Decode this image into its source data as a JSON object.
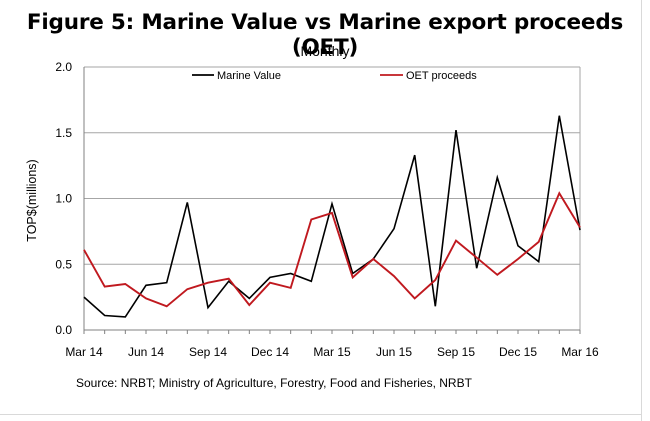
{
  "header": {
    "title": "Figure 5: Marine Value vs Marine export proceeds (OET)",
    "subtitle": "Monthly"
  },
  "footer": {
    "source": "Source: NRBT; Ministry of Agriculture, Forestry, Food and Fisheries, NRBT"
  },
  "chart_data": {
    "type": "line",
    "title": "Figure 5: Marine Value vs Marine export proceeds (OET)",
    "subtitle": "Monthly",
    "xlabel": "",
    "ylabel": "TOP$(millions)",
    "ylim": [
      0,
      2.0
    ],
    "yticks": [
      "0.0",
      "0.5",
      "1.0",
      "1.5",
      "2.0"
    ],
    "x": [
      "Mar 14",
      "Apr 14",
      "May 14",
      "Jun 14",
      "Jul 14",
      "Aug 14",
      "Sep 14",
      "Oct 14",
      "Nov 14",
      "Dec 14",
      "Jan 15",
      "Feb 15",
      "Mar 15",
      "Apr 15",
      "May 15",
      "Jun 15",
      "Jul 15",
      "Aug 15",
      "Sep 15",
      "Oct 15",
      "Nov 15",
      "Dec 15",
      "Jan 16",
      "Feb 16",
      "Mar 16"
    ],
    "xtick_labels": [
      "Mar 14",
      "Jun 14",
      "Sep 14",
      "Dec 14",
      "Mar 15",
      "Jun 15",
      "Sep 15",
      "Dec 15",
      "Mar 16"
    ],
    "grid": true,
    "legend": "top",
    "series": [
      {
        "name": "Marine Value",
        "color": "#000000",
        "values": [
          0.25,
          0.11,
          0.1,
          0.34,
          0.36,
          0.97,
          0.17,
          0.37,
          0.24,
          0.4,
          0.43,
          0.37,
          0.96,
          0.43,
          0.54,
          0.77,
          1.33,
          0.18,
          1.52,
          0.47,
          1.16,
          0.64,
          0.52,
          1.63,
          0.76
        ]
      },
      {
        "name": "OET proceeds",
        "color": "#c0191f",
        "values": [
          0.61,
          0.33,
          0.35,
          0.24,
          0.18,
          0.31,
          0.36,
          0.39,
          0.19,
          0.36,
          0.32,
          0.84,
          0.89,
          0.4,
          0.54,
          0.41,
          0.24,
          0.38,
          0.68,
          0.55,
          0.42,
          0.54,
          0.67,
          1.04,
          0.78
        ]
      }
    ]
  }
}
